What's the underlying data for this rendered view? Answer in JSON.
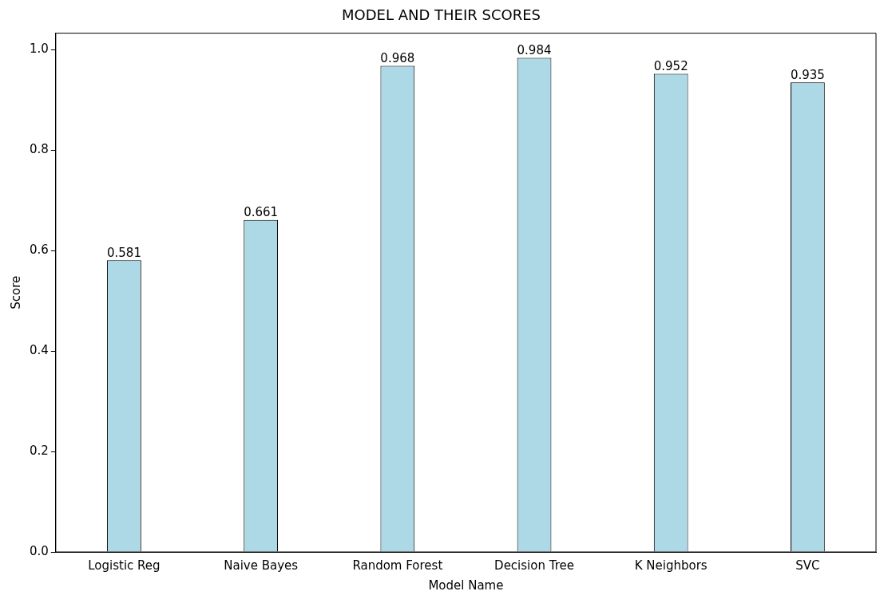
{
  "chart_data": {
    "type": "bar",
    "title": "MODEL AND THEIR SCORES",
    "xlabel": "Model Name",
    "ylabel": "Score",
    "categories": [
      "Logistic Reg",
      "Naive Bayes",
      "Random Forest",
      "Decision Tree",
      "K Neighbors",
      "SVC"
    ],
    "values": [
      0.581,
      0.661,
      0.968,
      0.984,
      0.952,
      0.935
    ],
    "color": "#add8e6",
    "ylim": [
      0,
      1.033
    ],
    "yticks": [
      {
        "value": 0,
        "label": "0.0"
      },
      0.2,
      0.4,
      0.6,
      0.8,
      {
        "value": 1,
        "label": "1.0"
      }
    ],
    "data_labels": true,
    "grid": false,
    "legend": false
  }
}
